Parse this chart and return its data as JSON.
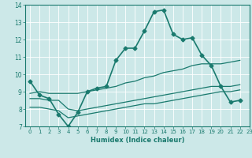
{
  "title": "",
  "xlabel": "Humidex (Indice chaleur)",
  "ylabel": "",
  "bg_color": "#cce8e8",
  "line_color": "#1a7a6e",
  "grid_color": "#ffffff",
  "xlim": [
    -0.5,
    23
  ],
  "ylim": [
    7,
    14
  ],
  "xticks": [
    0,
    1,
    2,
    3,
    4,
    5,
    6,
    7,
    8,
    9,
    10,
    11,
    12,
    13,
    14,
    15,
    16,
    17,
    18,
    19,
    20,
    21,
    22,
    23
  ],
  "yticks": [
    7,
    8,
    9,
    10,
    11,
    12,
    13,
    14
  ],
  "series": [
    {
      "x": [
        0,
        1,
        2,
        3,
        4,
        5,
        6,
        7,
        8,
        9,
        10,
        11,
        12,
        13,
        14,
        15,
        16,
        17,
        18,
        19,
        20,
        21,
        22
      ],
      "y": [
        9.6,
        8.8,
        8.6,
        7.7,
        7.0,
        7.8,
        9.0,
        9.2,
        9.3,
        10.8,
        11.5,
        11.5,
        12.5,
        13.6,
        13.7,
        12.3,
        12.0,
        12.1,
        11.1,
        10.5,
        9.3,
        8.4,
        8.5
      ],
      "marker": "D",
      "lw": 1.2,
      "ms": 2.5
    },
    {
      "x": [
        0,
        1,
        2,
        3,
        4,
        5,
        6,
        7,
        8,
        9,
        10,
        11,
        12,
        13,
        14,
        15,
        16,
        17,
        18,
        19,
        20,
        21,
        22
      ],
      "y": [
        8.9,
        9.0,
        8.9,
        8.9,
        8.9,
        8.9,
        9.0,
        9.1,
        9.2,
        9.3,
        9.5,
        9.6,
        9.8,
        9.9,
        10.1,
        10.2,
        10.3,
        10.5,
        10.6,
        10.6,
        10.6,
        10.7,
        10.8
      ],
      "marker": null,
      "lw": 0.9,
      "ms": 0
    },
    {
      "x": [
        0,
        1,
        2,
        3,
        4,
        5,
        6,
        7,
        8,
        9,
        10,
        11,
        12,
        13,
        14,
        15,
        16,
        17,
        18,
        19,
        20,
        21,
        22
      ],
      "y": [
        8.6,
        8.6,
        8.5,
        8.5,
        8.0,
        7.9,
        8.0,
        8.1,
        8.2,
        8.3,
        8.4,
        8.5,
        8.6,
        8.7,
        8.8,
        8.9,
        9.0,
        9.1,
        9.2,
        9.3,
        9.3,
        9.3,
        9.4
      ],
      "marker": null,
      "lw": 0.9,
      "ms": 0
    },
    {
      "x": [
        0,
        1,
        2,
        3,
        4,
        5,
        6,
        7,
        8,
        9,
        10,
        11,
        12,
        13,
        14,
        15,
        16,
        17,
        18,
        19,
        20,
        21,
        22
      ],
      "y": [
        8.1,
        8.1,
        8.0,
        7.9,
        7.5,
        7.6,
        7.7,
        7.8,
        7.9,
        8.0,
        8.1,
        8.2,
        8.3,
        8.3,
        8.4,
        8.5,
        8.6,
        8.7,
        8.8,
        8.9,
        9.0,
        9.0,
        9.1
      ],
      "marker": null,
      "lw": 0.9,
      "ms": 0
    }
  ]
}
